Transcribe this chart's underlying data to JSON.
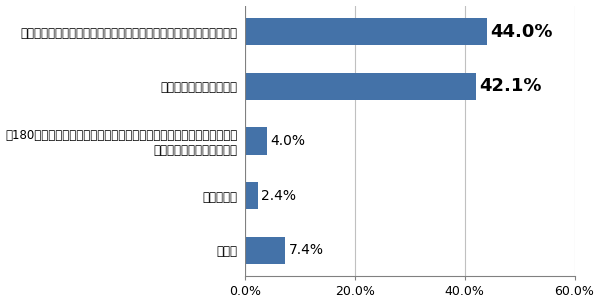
{
  "categories": [
    "先の一体改革に加えて、いずれ追加の計画がないと財政再建は不可能",
    "財政破綻は避けられない",
    "第180回通常国会で成立した「社会保障と税の一体改革関連法」で十分\n再建が可能になったと思う",
    "わからない",
    "その他"
  ],
  "values": [
    44.0,
    42.1,
    4.0,
    2.4,
    7.4
  ],
  "bar_color": "#4472a8",
  "value_labels": [
    "44.0%",
    "42.1%",
    "4.0%",
    "2.4%",
    "7.4%"
  ],
  "value_fontsize_large": 13,
  "value_fontsize_small": 10,
  "value_bold_large": true,
  "xlim": [
    0,
    60
  ],
  "xticks": [
    0,
    20,
    40,
    60
  ],
  "xtick_labels": [
    "0.0%",
    "20.0%",
    "40.0%",
    "60.0%"
  ],
  "background_color": "#ffffff",
  "label_fontsize": 8.5,
  "tick_fontsize": 9,
  "bar_height": 0.5,
  "grid_color": "#c0c0c0",
  "spine_color": "#808080"
}
